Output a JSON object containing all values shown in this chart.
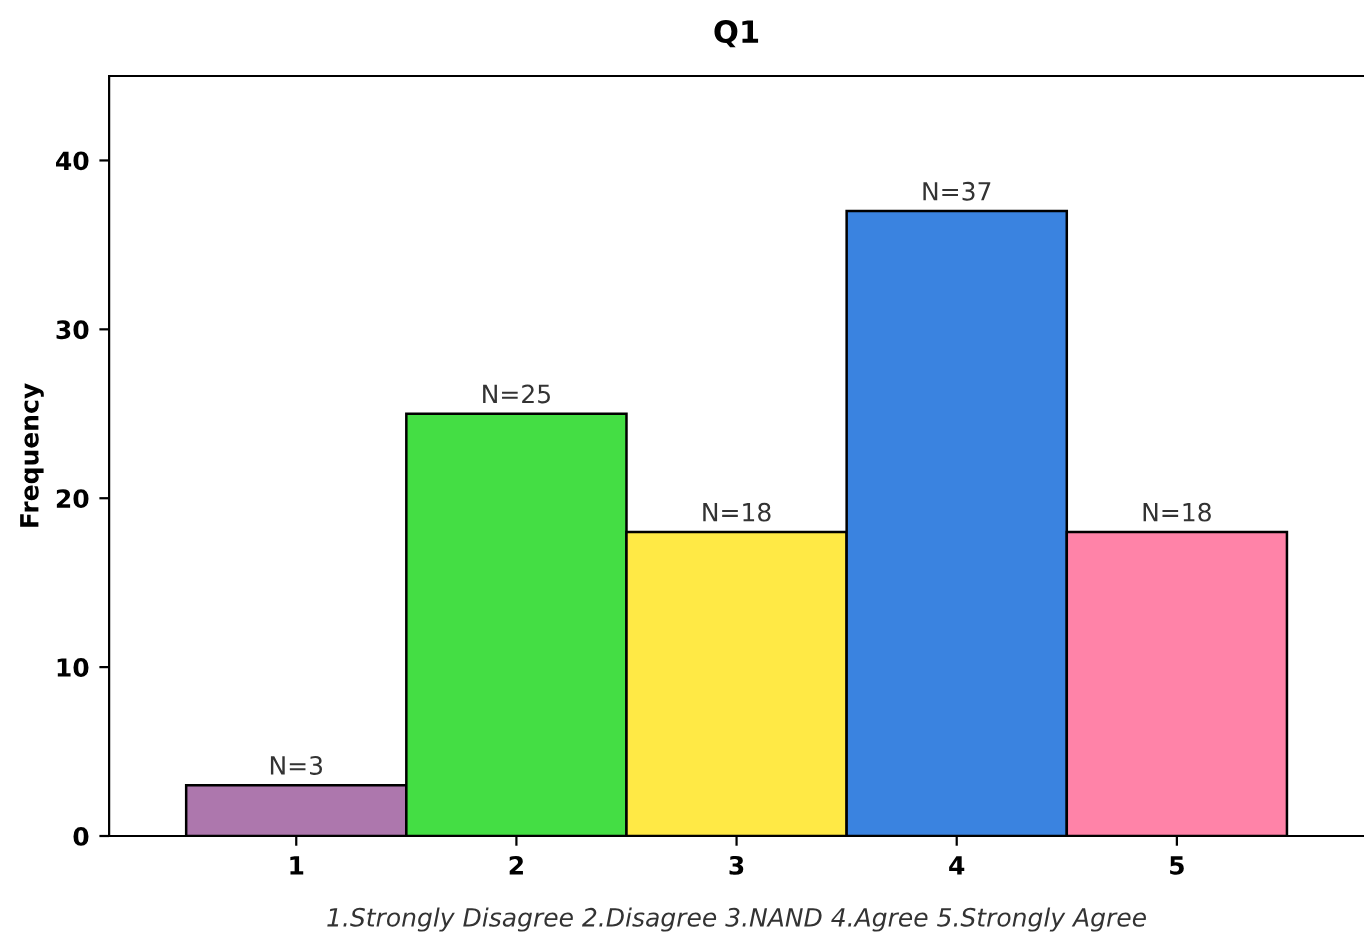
{
  "chart_data": {
    "type": "bar",
    "title": "Q1",
    "xlabel": "1.Strongly Disagree 2.Disagree 3.NAND 4.Agree 5.Strongly Agree",
    "ylabel": "Frequency",
    "categories": [
      "1",
      "2",
      "3",
      "4",
      "5"
    ],
    "values": [
      3,
      25,
      18,
      37,
      18
    ],
    "colors": [
      "#ad77ad",
      "#44de44",
      "#ffe945",
      "#3a83e0",
      "#ff83a8"
    ],
    "value_labels": [
      "N=3",
      "N=25",
      "N=18",
      "N=37",
      "N=18"
    ],
    "ylim": [
      0,
      45
    ],
    "yticks": [
      0,
      10,
      20,
      30,
      40
    ],
    "grid": false,
    "legend": false
  }
}
